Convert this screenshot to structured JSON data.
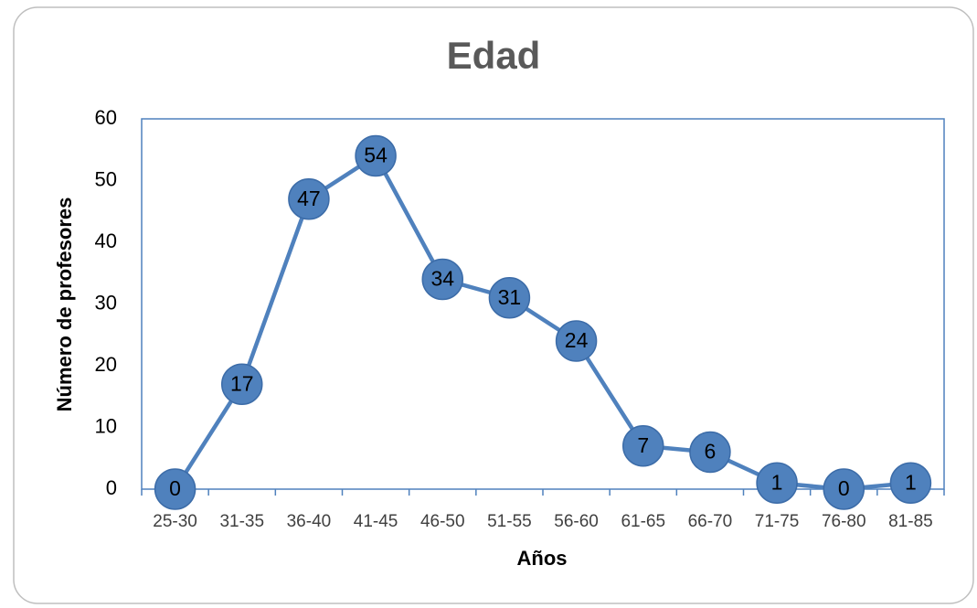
{
  "chart_data": {
    "type": "line",
    "title": "Edad",
    "x_label": "Años",
    "y_label": "Número de profesores",
    "categories": [
      "25-30",
      "31-35",
      "36-40",
      "41-45",
      "46-50",
      "51-55",
      "56-60",
      "61-65",
      "66-70",
      "71-75",
      "76-80",
      "81-85"
    ],
    "values": [
      0,
      17,
      47,
      54,
      34,
      31,
      24,
      7,
      6,
      1,
      0,
      1
    ],
    "color": "#4f81bd",
    "ylim": [
      0,
      60
    ],
    "yticks": [
      0,
      10,
      20,
      30,
      40,
      50,
      60
    ]
  }
}
